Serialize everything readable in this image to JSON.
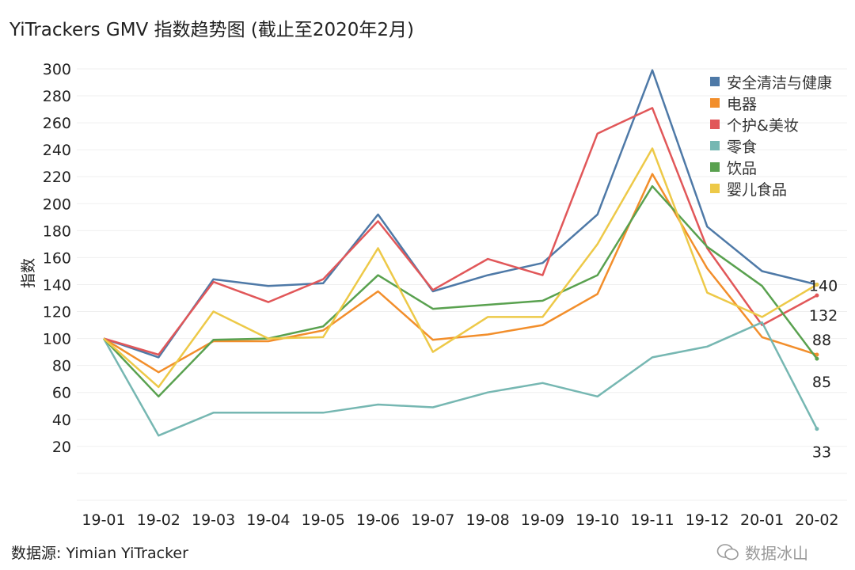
{
  "title": "YiTrackers GMV 指数趋势图 (截止至2020年2月)",
  "source": "数据源: Yimian YiTracker",
  "watermark": "数据冰山",
  "chart_data": {
    "type": "line",
    "title": "YiTrackers GMV 指数趋势图 (截止至2020年2月)",
    "xlabel": "",
    "ylabel": "指数",
    "ylim": [
      0,
      300
    ],
    "yticks": [
      20,
      40,
      60,
      80,
      100,
      120,
      140,
      160,
      180,
      200,
      220,
      240,
      260,
      280,
      300
    ],
    "grid": true,
    "legend_position": "top-right",
    "categories": [
      "19-01",
      "19-02",
      "19-03",
      "19-04",
      "19-05",
      "19-06",
      "19-07",
      "19-08",
      "19-09",
      "19-10",
      "19-11",
      "19-12",
      "20-01",
      "20-02"
    ],
    "series": [
      {
        "name": "安全清洁与健康",
        "color": "#4e79a7",
        "values": [
          100,
          86,
          144,
          139,
          141,
          192,
          135,
          147,
          156,
          192,
          299,
          183,
          150,
          140
        ],
        "end_label": "140"
      },
      {
        "name": "电器",
        "color": "#f28e2b",
        "values": [
          100,
          75,
          98,
          98,
          106,
          135,
          99,
          103,
          110,
          133,
          222,
          152,
          101,
          88
        ],
        "end_label": "88"
      },
      {
        "name": "个护&美妆",
        "color": "#e15759",
        "values": [
          100,
          88,
          142,
          127,
          144,
          187,
          136,
          159,
          147,
          252,
          271,
          167,
          110,
          132
        ],
        "end_label": "132"
      },
      {
        "name": "零食",
        "color": "#76b7b2",
        "values": [
          100,
          28,
          45,
          45,
          45,
          51,
          49,
          60,
          67,
          57,
          86,
          94,
          112,
          33
        ],
        "end_label": "33"
      },
      {
        "name": "饮品",
        "color": "#59a14f",
        "values": [
          100,
          57,
          99,
          100,
          109,
          147,
          122,
          125,
          128,
          147,
          213,
          168,
          139,
          85
        ],
        "end_label": "85"
      },
      {
        "name": "婴儿食品",
        "color": "#edc948",
        "values": [
          100,
          64,
          120,
          100,
          101,
          167,
          90,
          116,
          116,
          170,
          241,
          134,
          116,
          140
        ],
        "end_label": ""
      }
    ]
  }
}
